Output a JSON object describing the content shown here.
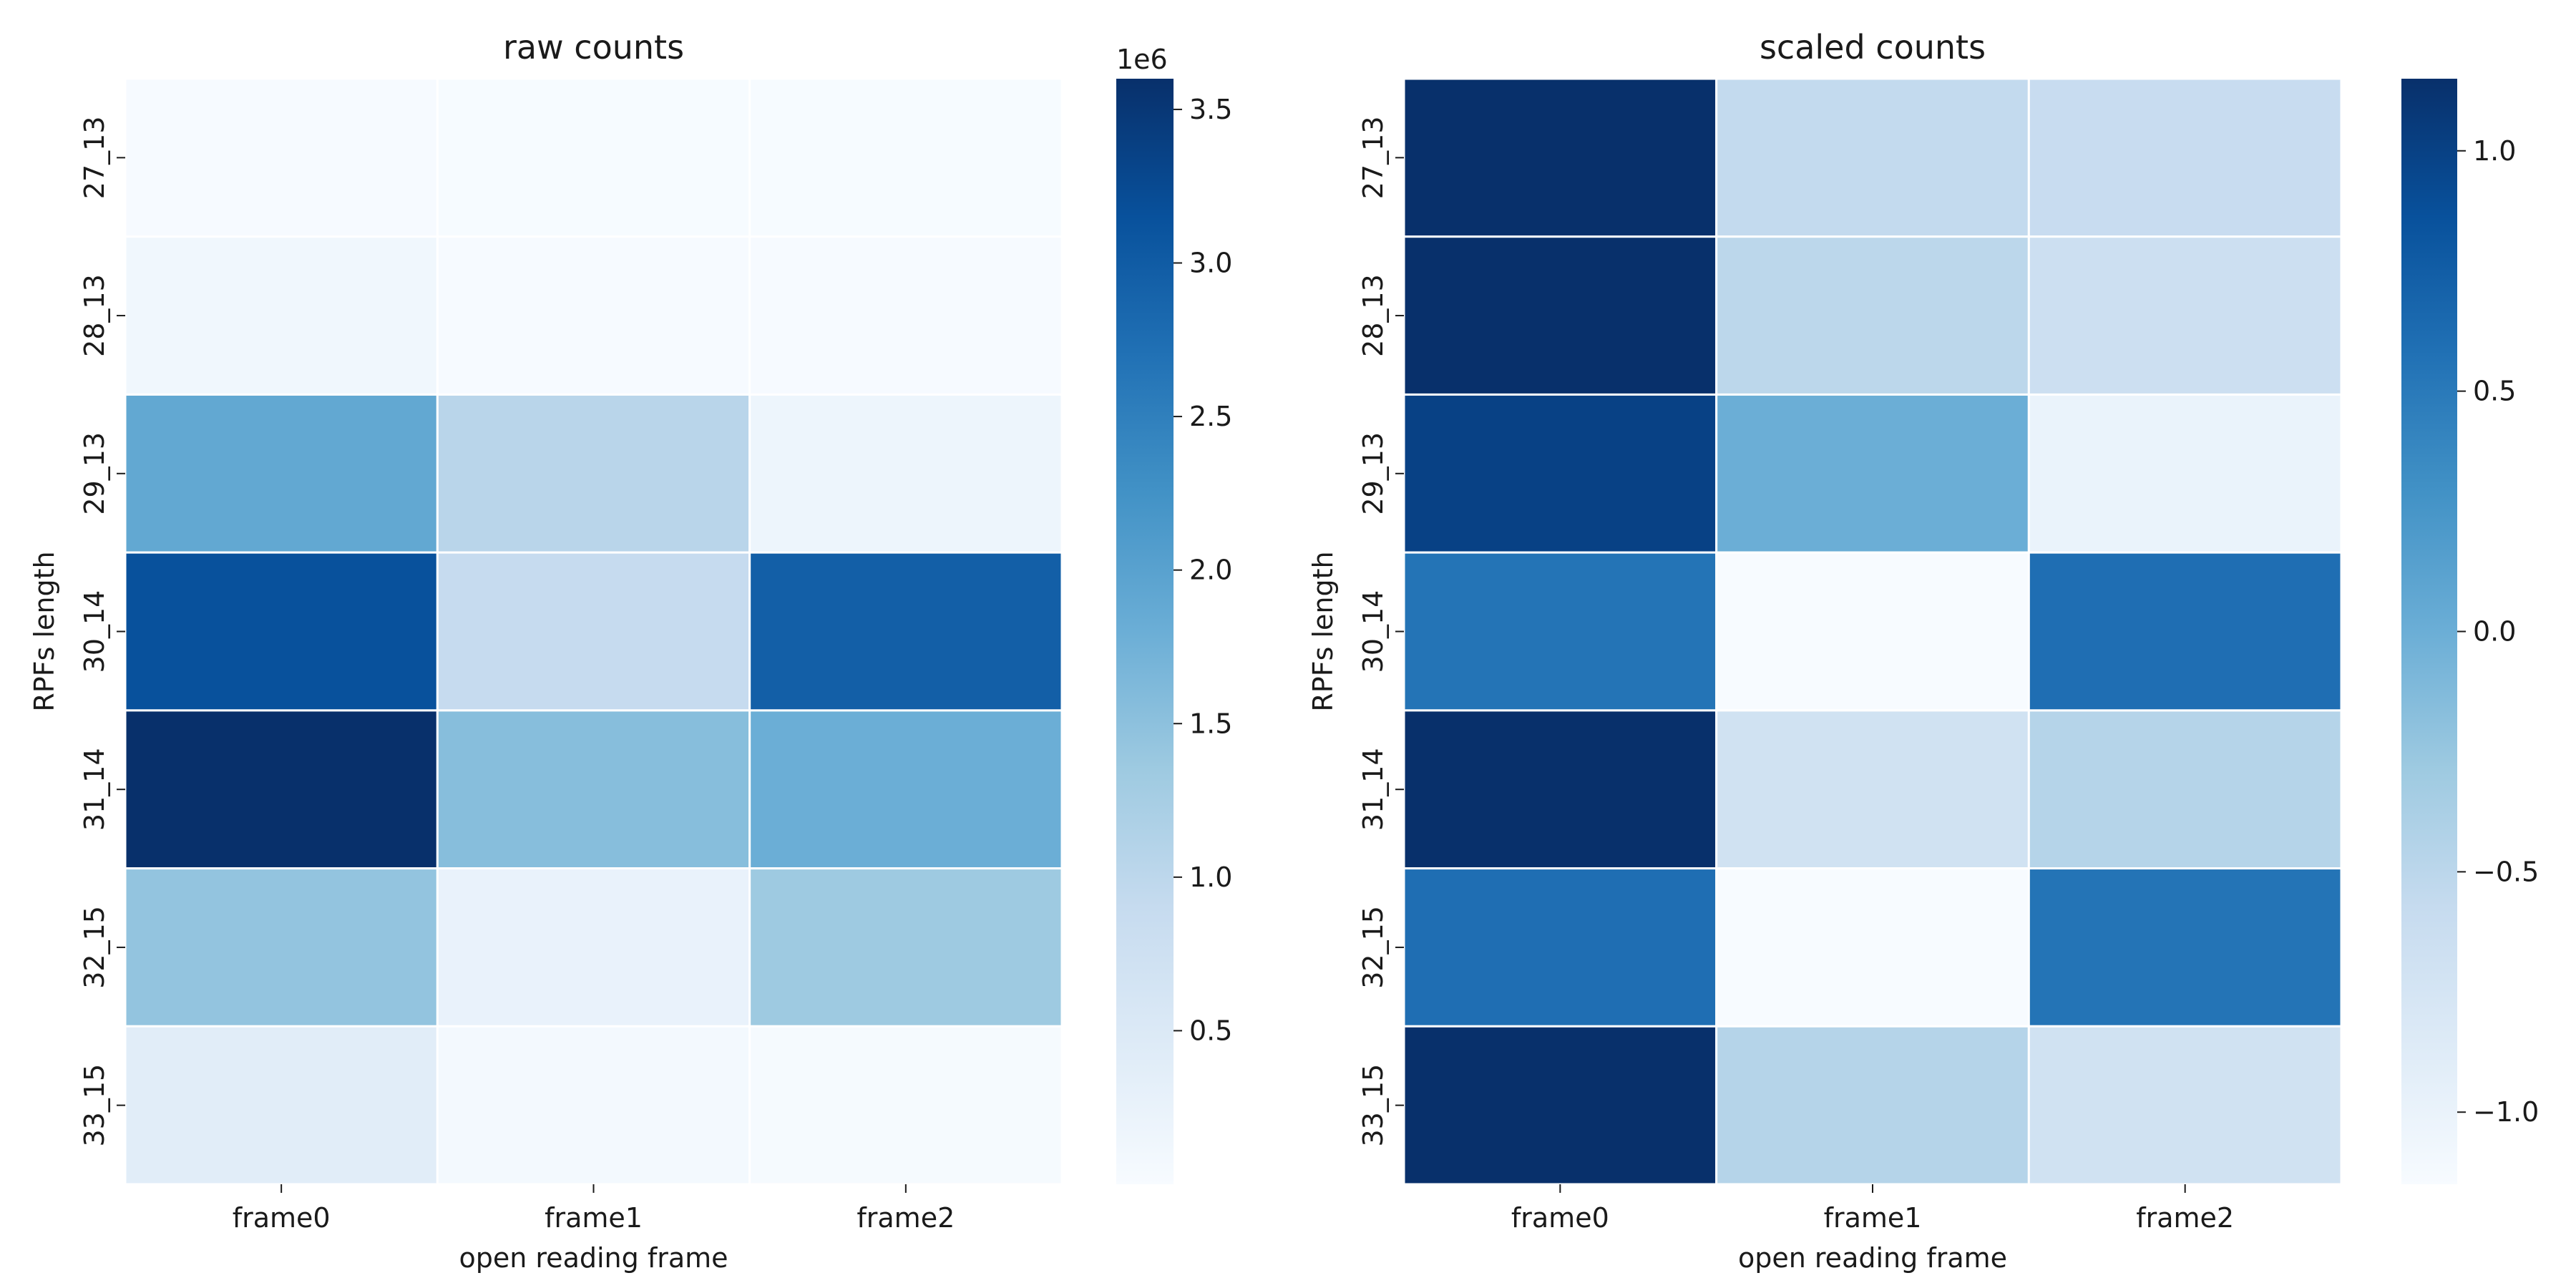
{
  "chart_data": [
    {
      "type": "heatmap",
      "title": "raw counts",
      "xlabel": "open reading frame",
      "ylabel": "RPFs length",
      "x": [
        "frame0",
        "frame1",
        "frame2"
      ],
      "y": [
        "27_13",
        "28_13",
        "29_13",
        "30_14",
        "31_14",
        "32_15",
        "33_15"
      ],
      "values": [
        [
          20000,
          10000,
          10000
        ],
        [
          120000,
          20000,
          20000
        ],
        [
          1900000,
          1050000,
          180000
        ],
        [
          3150000,
          900000,
          2950000
        ],
        [
          3600000,
          1550000,
          1800000
        ],
        [
          1450000,
          250000,
          1350000
        ],
        [
          400000,
          70000,
          30000
        ]
      ],
      "colorbar": {
        "min": 0,
        "max": 3600000,
        "ticks": [
          500000,
          1000000,
          1500000,
          2000000,
          2500000,
          3000000,
          3500000
        ],
        "tick_labels": [
          "0.5",
          "1.0",
          "1.5",
          "2.0",
          "2.5",
          "3.0",
          "3.5"
        ],
        "offset_label": "1e6"
      },
      "colormap": [
        "#f7fbff",
        "#deebf7",
        "#c6dbef",
        "#9ecae1",
        "#6baed6",
        "#4292c6",
        "#2171b5",
        "#08519c",
        "#08306b"
      ]
    },
    {
      "type": "heatmap",
      "title": "scaled counts",
      "xlabel": "open reading frame",
      "ylabel": "RPFs length",
      "x": [
        "frame0",
        "frame1",
        "frame2"
      ],
      "y": [
        "27_13",
        "28_13",
        "29_13",
        "30_14",
        "31_14",
        "32_15",
        "33_15"
      ],
      "values": [
        [
          1.15,
          -0.55,
          -0.6
        ],
        [
          1.15,
          -0.5,
          -0.65
        ],
        [
          1.0,
          0.0,
          -1.0
        ],
        [
          0.55,
          -1.15,
          0.6
        ],
        [
          1.15,
          -0.7,
          -0.45
        ],
        [
          0.6,
          -1.15,
          0.55
        ],
        [
          1.15,
          -0.45,
          -0.7
        ]
      ],
      "colorbar": {
        "min": -1.15,
        "max": 1.15,
        "ticks": [
          -1.0,
          -0.5,
          0.0,
          0.5,
          1.0
        ],
        "tick_labels": [
          "−1.0",
          "−0.5",
          "0.0",
          "0.5",
          "1.0"
        ],
        "offset_label": ""
      },
      "colormap": [
        "#f7fbff",
        "#deebf7",
        "#c6dbef",
        "#9ecae1",
        "#6baed6",
        "#4292c6",
        "#2171b5",
        "#08519c",
        "#08306b"
      ]
    }
  ]
}
